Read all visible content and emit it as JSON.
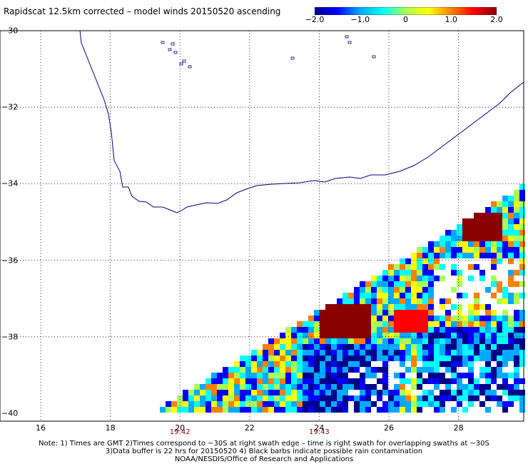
{
  "title": "Rapidscat 12.5km corrected – model winds 20150520 ascending",
  "colorbar": {
    "ticks": [
      {
        "value": -2.0,
        "label": "−2.0"
      },
      {
        "value": -1.0,
        "label": "−1.0"
      },
      {
        "value": 0,
        "label": "0"
      },
      {
        "value": 1.0,
        "label": "1.0"
      },
      {
        "value": 2.0,
        "label": "2.0"
      }
    ],
    "range": [
      -2.0,
      2.0
    ],
    "colors": [
      "#00008b",
      "#0000ff",
      "#00aaff",
      "#00ffff",
      "#aaff55",
      "#ffff00",
      "#ff8000",
      "#ff0000",
      "#8b0000"
    ]
  },
  "map": {
    "lon_range": [
      15,
      30
    ],
    "lat_range": [
      -40,
      -30
    ],
    "lat_ticks": [
      {
        "value": -30,
        "label": "−30"
      },
      {
        "value": -32,
        "label": "−32"
      },
      {
        "value": -34,
        "label": "−34"
      },
      {
        "value": -36,
        "label": "−36"
      },
      {
        "value": -38,
        "label": "−38"
      },
      {
        "value": -40,
        "label": "−40"
      }
    ],
    "lon_ticks": [
      {
        "value": 16,
        "label": "16"
      },
      {
        "value": 18,
        "label": "18"
      },
      {
        "value": 20,
        "label": "20"
      },
      {
        "value": 22,
        "label": "22"
      },
      {
        "value": 24,
        "label": "24"
      },
      {
        "value": 26,
        "label": "26"
      },
      {
        "value": 28,
        "label": "28"
      }
    ],
    "times": [
      {
        "lon": 20,
        "label": "19:42"
      },
      {
        "lon": 24,
        "label": "19:43"
      }
    ],
    "coastline_color": "#000080",
    "grid": true
  },
  "note": {
    "line1": "Note: 1) Times are GMT 2)Times correspond to ~30S at right swath edge – time is right swath for overlapping swaths at ~30S",
    "line2": "3)Data buffer is 22 hrs for 20150520 4) Black barbs indicate possible rain contamination",
    "line3": "NOAA/NESDIS/Office of Research and Applications"
  }
}
